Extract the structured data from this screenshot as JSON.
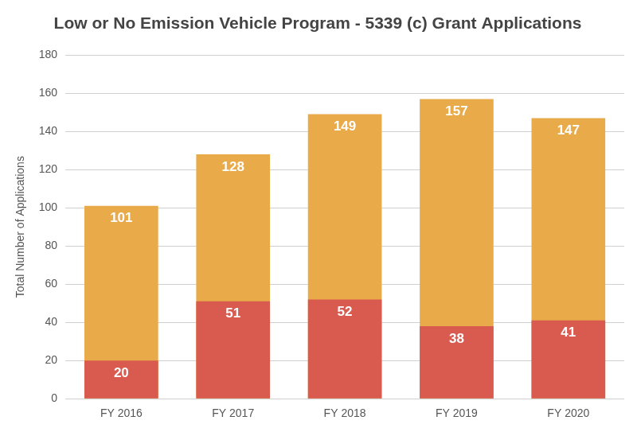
{
  "chart_data": {
    "type": "bar",
    "title": "Low or No Emission Vehicle Program - 5339 (c) Grant Applications",
    "y_label": "Total Number of Applications",
    "categories": [
      "FY 2016",
      "FY 2017",
      "FY 2018",
      "FY 2019",
      "FY 2020"
    ],
    "series": [
      {
        "color": "#e9aa4a",
        "values": [
          101,
          128,
          149,
          157,
          147
        ]
      },
      {
        "color": "#d95a4f",
        "values": [
          20,
          51,
          52,
          38,
          41
        ]
      }
    ],
    "ylim": [
      0,
      180
    ],
    "yticks": [
      0,
      20,
      40,
      60,
      80,
      100,
      120,
      140,
      160,
      180
    ],
    "grid": true,
    "data_labels": true
  }
}
